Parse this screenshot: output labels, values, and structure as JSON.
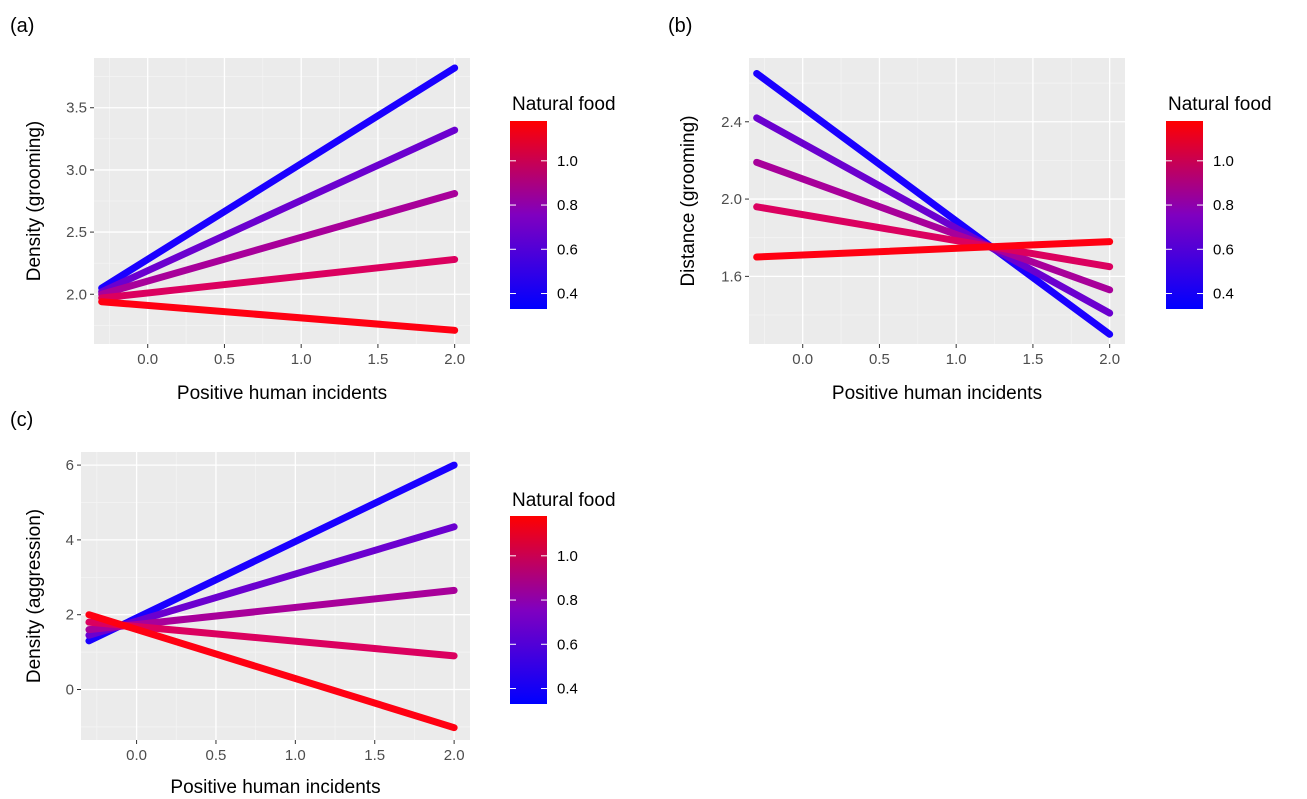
{
  "figure": {
    "panels_order": [
      "a",
      "b",
      "c"
    ]
  },
  "chart_data": [
    {
      "panel": "(a)",
      "type": "line",
      "xlabel": "Positive human incidents",
      "ylabel": "Density (grooming)",
      "xlim": [
        -0.35,
        2.1
      ],
      "ylim": [
        1.6,
        3.9
      ],
      "x_ticks": [
        0.0,
        0.5,
        1.0,
        1.5,
        2.0
      ],
      "x_tick_labels": [
        "0.0",
        "0.5",
        "1.0",
        "1.5",
        "2.0"
      ],
      "y_ticks": [
        2.0,
        2.5,
        3.0,
        3.5
      ],
      "y_tick_labels": [
        "2.0",
        "2.5",
        "3.0",
        "3.5"
      ],
      "grid": true,
      "series": [
        {
          "natural_food": 0.35,
          "color": "#1a00ff",
          "x": [
            -0.3,
            2.0
          ],
          "y": [
            2.05,
            3.82
          ]
        },
        {
          "natural_food": 0.55,
          "color": "#6b00cf",
          "x": [
            -0.3,
            2.0
          ],
          "y": [
            2.02,
            3.32
          ]
        },
        {
          "natural_food": 0.75,
          "color": "#a8009a",
          "x": [
            -0.3,
            2.0
          ],
          "y": [
            2.0,
            2.81
          ]
        },
        {
          "natural_food": 0.95,
          "color": "#db005f",
          "x": [
            -0.3,
            2.0
          ],
          "y": [
            1.97,
            2.28
          ]
        },
        {
          "natural_food": 1.15,
          "color": "#ff0012",
          "x": [
            -0.3,
            2.0
          ],
          "y": [
            1.94,
            1.71
          ]
        }
      ],
      "legend": {
        "title": "Natural food",
        "placement": "right",
        "range": [
          0.33,
          1.18
        ],
        "low_color": "#0000ff",
        "high_color": "#ff0000",
        "ticks": [
          0.4,
          0.6,
          0.8,
          1.0
        ],
        "tick_labels": [
          "0.4",
          "0.6",
          "0.8",
          "1.0"
        ]
      }
    },
    {
      "panel": "(b)",
      "type": "line",
      "xlabel": "Positive human incidents",
      "ylabel": "Distance (grooming)",
      "xlim": [
        -0.35,
        2.1
      ],
      "ylim": [
        1.25,
        2.73
      ],
      "x_ticks": [
        0.0,
        0.5,
        1.0,
        1.5,
        2.0
      ],
      "x_tick_labels": [
        "0.0",
        "0.5",
        "1.0",
        "1.5",
        "2.0"
      ],
      "y_ticks": [
        1.6,
        2.0,
        2.4
      ],
      "y_tick_labels": [
        "1.6",
        "2.0",
        "2.4"
      ],
      "grid": true,
      "series": [
        {
          "natural_food": 0.35,
          "color": "#1a00ff",
          "x": [
            -0.3,
            2.0
          ],
          "y": [
            2.65,
            1.3
          ]
        },
        {
          "natural_food": 0.55,
          "color": "#6b00cf",
          "x": [
            -0.3,
            2.0
          ],
          "y": [
            2.42,
            1.41
          ]
        },
        {
          "natural_food": 0.75,
          "color": "#a8009a",
          "x": [
            -0.3,
            2.0
          ],
          "y": [
            2.19,
            1.53
          ]
        },
        {
          "natural_food": 0.95,
          "color": "#db005f",
          "x": [
            -0.3,
            2.0
          ],
          "y": [
            1.96,
            1.65
          ]
        },
        {
          "natural_food": 1.15,
          "color": "#ff0012",
          "x": [
            -0.3,
            2.0
          ],
          "y": [
            1.7,
            1.78
          ]
        }
      ],
      "legend": {
        "title": "Natural food",
        "placement": "right",
        "range": [
          0.33,
          1.18
        ],
        "low_color": "#0000ff",
        "high_color": "#ff0000",
        "ticks": [
          0.4,
          0.6,
          0.8,
          1.0
        ],
        "tick_labels": [
          "0.4",
          "0.6",
          "0.8",
          "1.0"
        ]
      }
    },
    {
      "panel": "(c)",
      "type": "line",
      "xlabel": "Positive human incidents",
      "ylabel": "Density (aggression)",
      "xlim": [
        -0.35,
        2.1
      ],
      "ylim": [
        -1.35,
        6.35
      ],
      "x_ticks": [
        0.0,
        0.5,
        1.0,
        1.5,
        2.0
      ],
      "x_tick_labels": [
        "0.0",
        "0.5",
        "1.0",
        "1.5",
        "2.0"
      ],
      "y_ticks": [
        0,
        2,
        4,
        6
      ],
      "y_tick_labels": [
        "0",
        "2",
        "4",
        "6"
      ],
      "grid": true,
      "series": [
        {
          "natural_food": 0.35,
          "color": "#1a00ff",
          "x": [
            -0.3,
            2.0
          ],
          "y": [
            1.3,
            6.0
          ]
        },
        {
          "natural_food": 0.55,
          "color": "#6b00cf",
          "x": [
            -0.3,
            2.0
          ],
          "y": [
            1.45,
            4.35
          ]
        },
        {
          "natural_food": 0.75,
          "color": "#a8009a",
          "x": [
            -0.3,
            2.0
          ],
          "y": [
            1.6,
            2.65
          ]
        },
        {
          "natural_food": 0.95,
          "color": "#db005f",
          "x": [
            -0.3,
            2.0
          ],
          "y": [
            1.8,
            0.9
          ]
        },
        {
          "natural_food": 1.15,
          "color": "#ff0012",
          "x": [
            -0.3,
            2.0
          ],
          "y": [
            2.0,
            -1.02
          ]
        }
      ],
      "legend": {
        "title": "Natural food",
        "placement": "right",
        "range": [
          0.33,
          1.18
        ],
        "low_color": "#0000ff",
        "high_color": "#ff0000",
        "ticks": [
          0.4,
          0.6,
          0.8,
          1.0
        ],
        "tick_labels": [
          "0.4",
          "0.6",
          "0.8",
          "1.0"
        ]
      }
    }
  ]
}
